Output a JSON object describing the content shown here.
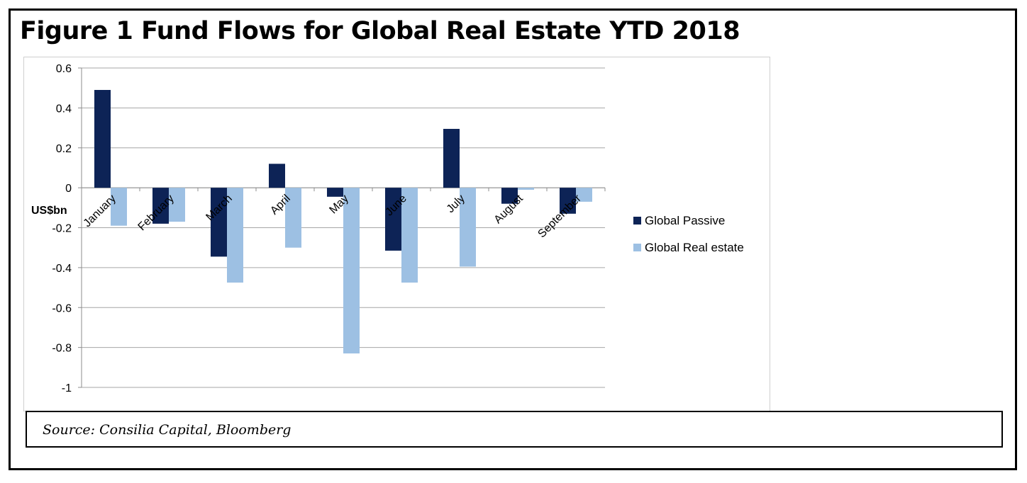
{
  "title": "Figure 1 Fund Flows for Global Real Estate YTD 2018",
  "source": "Source: Consilia Capital, Bloomberg",
  "chart_data": {
    "type": "bar",
    "title": "",
    "xlabel": "",
    "ylabel": "US$bn",
    "categories": [
      "January",
      "February",
      "March",
      "April",
      "May",
      "June",
      "July",
      "August",
      "September"
    ],
    "series": [
      {
        "name": "Global Passive",
        "color": "#0d2356",
        "values": [
          0.49,
          -0.18,
          -0.345,
          0.12,
          -0.045,
          -0.315,
          0.295,
          -0.08,
          -0.13
        ]
      },
      {
        "name": "Global Real estate",
        "color": "#9dc0e3",
        "values": [
          -0.19,
          -0.17,
          -0.475,
          -0.3,
          -0.83,
          -0.475,
          -0.395,
          -0.01,
          -0.07
        ]
      }
    ],
    "ylim": [
      -1,
      0.6
    ],
    "yticks": [
      0.6,
      0.4,
      0.2,
      0,
      -0.2,
      -0.4,
      -0.6,
      -0.8,
      -1
    ],
    "ytick_labels": [
      "0.6",
      "0.4",
      "0.2",
      "0",
      "-0.2",
      "-0.4",
      "-0.6",
      "-0.8",
      "-1"
    ],
    "grid": true,
    "legend_position": "right"
  }
}
